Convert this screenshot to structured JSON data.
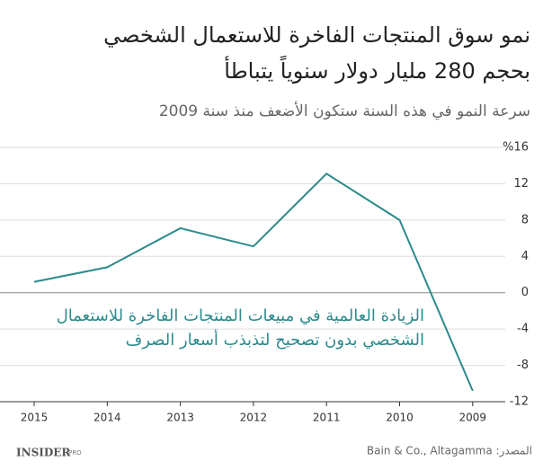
{
  "chart_data": {
    "type": "line",
    "title": [
      "نمو سوق المنتجات الفاخرة للاستعمال الشخصي",
      "بحجم 280 مليار دولار سنوياً يتباطأ"
    ],
    "subtitle": "سرعة النمو في هذه السنة ستكون الأضعف منذ سنة 2009",
    "annotation": [
      "الزيادة العالمية في مبيعات المنتجات الفاخرة للاستعمال",
      "الشخصي بدون تصحيح لتذبذب أسعار الصرف"
    ],
    "categories": [
      "2015",
      "2014",
      "2013",
      "2012",
      "2011",
      "2010",
      "2009"
    ],
    "values": [
      1.2,
      2.8,
      7.1,
      5.1,
      13.1,
      8.0,
      -10.8
    ],
    "color": "#2b8a8c",
    "ylim": [
      -12,
      16
    ],
    "yticks": [
      {
        "value": 16,
        "label": "%16"
      },
      12,
      8,
      4,
      0,
      -4,
      -8,
      -12
    ],
    "grid": true,
    "source": "المصدر: Bain & Co., Altagamma",
    "logo": [
      "INSIDER",
      "PRO"
    ]
  }
}
